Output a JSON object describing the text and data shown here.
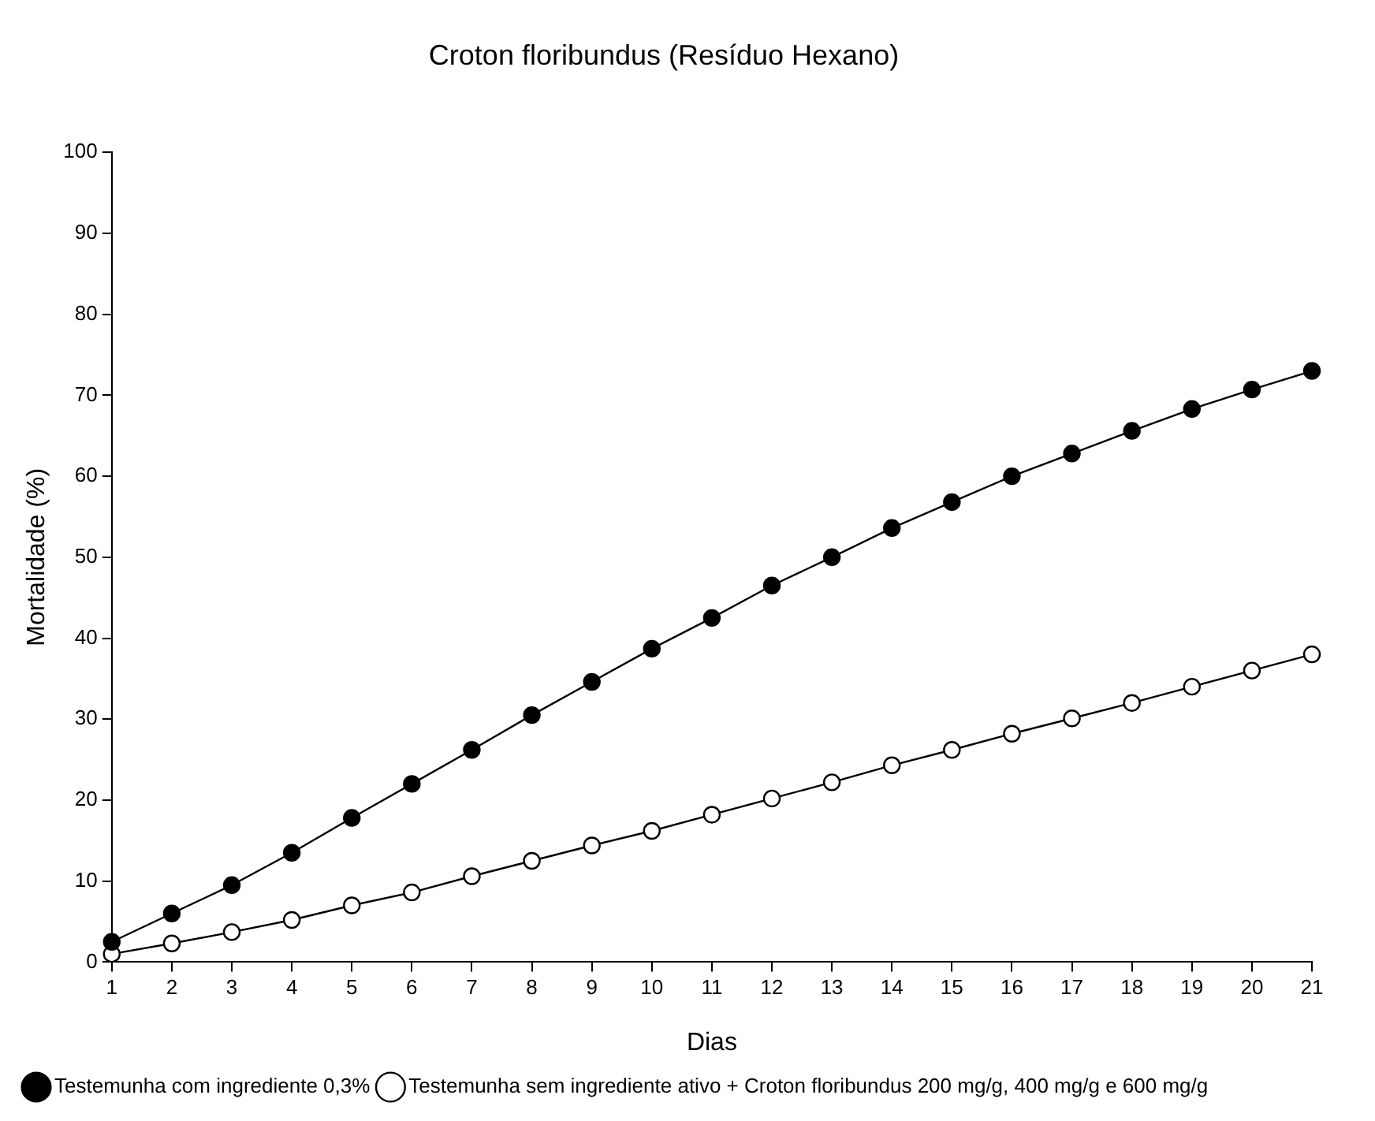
{
  "chart_data": {
    "type": "line",
    "title": "Croton floribundus (Resíduo Hexano)",
    "xlabel": "Dias",
    "ylabel": "Mortalidade (%)",
    "x": [
      1,
      2,
      3,
      4,
      5,
      6,
      7,
      8,
      9,
      10,
      11,
      12,
      13,
      14,
      15,
      16,
      17,
      18,
      19,
      20,
      21
    ],
    "xlim": [
      1,
      21
    ],
    "xticks": [
      1,
      2,
      3,
      4,
      5,
      6,
      7,
      8,
      9,
      10,
      11,
      12,
      13,
      14,
      15,
      16,
      17,
      18,
      19,
      20,
      21
    ],
    "ylim": [
      0,
      100
    ],
    "yticks": [
      0,
      10,
      20,
      30,
      40,
      50,
      60,
      70,
      80,
      90,
      100
    ],
    "grid": false,
    "legend": "bottom",
    "marker": "circle",
    "line_style": "solid",
    "series": [
      {
        "name": "Testemunha com ingrediente 0,3%",
        "color": "#000000",
        "values": [
          2.5,
          6,
          9.5,
          13.5,
          17.8,
          22,
          26.2,
          30.5,
          34.6,
          38.7,
          42.5,
          46.5,
          50,
          53.6,
          56.8,
          60,
          62.8,
          65.6,
          68.3,
          70.7,
          73
        ]
      },
      {
        "name": "Testemunha sem ingrediente ativo + Croton floribundus 200 mg/g, 400 mg/g e 600 mg/g",
        "color": "#ffffff",
        "values": [
          1,
          2.3,
          3.7,
          5.2,
          7,
          8.6,
          10.6,
          12.5,
          14.4,
          16.2,
          18.2,
          20.2,
          22.2,
          24.3,
          26.2,
          28.2,
          30.1,
          32,
          34,
          36,
          38
        ]
      }
    ]
  }
}
